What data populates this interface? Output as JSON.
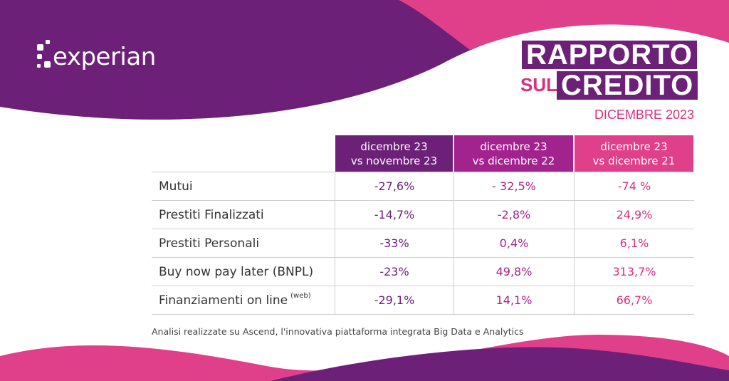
{
  "brand": "experian",
  "title": {
    "line1": "RAPPORTO",
    "prefix": "SUL",
    "line2": "CREDITO",
    "date": "DICEMBRE 2023"
  },
  "table": {
    "headers": [
      [
        "dicembre 23",
        "vs novembre 23"
      ],
      [
        "dicembre 23",
        "vs dicembre 22"
      ],
      [
        "dicembre 23",
        "vs dicembre 21"
      ]
    ],
    "rows": [
      {
        "label": "Mutui",
        "values": [
          "-27,6%",
          "- 32,5%",
          "-74 %"
        ]
      },
      {
        "label": "Prestiti Finalizzati",
        "values": [
          "-14,7%",
          "-2,8%",
          "24,9%"
        ]
      },
      {
        "label": "Prestiti Personali",
        "values": [
          "-33%",
          "0,4%",
          "6,1%"
        ]
      },
      {
        "label": "Buy now pay later (BNPL)",
        "values": [
          "-23%",
          "49,8%",
          "313,7%"
        ]
      },
      {
        "label": "Finanziamenti on line",
        "sup": "(web)",
        "values": [
          "-29,1%",
          "14,1%",
          "66,7%"
        ]
      }
    ]
  },
  "footnote": "Analisi realizzate su Ascend, l'innovativa piattaforma integrata Big Data e Analytics"
}
